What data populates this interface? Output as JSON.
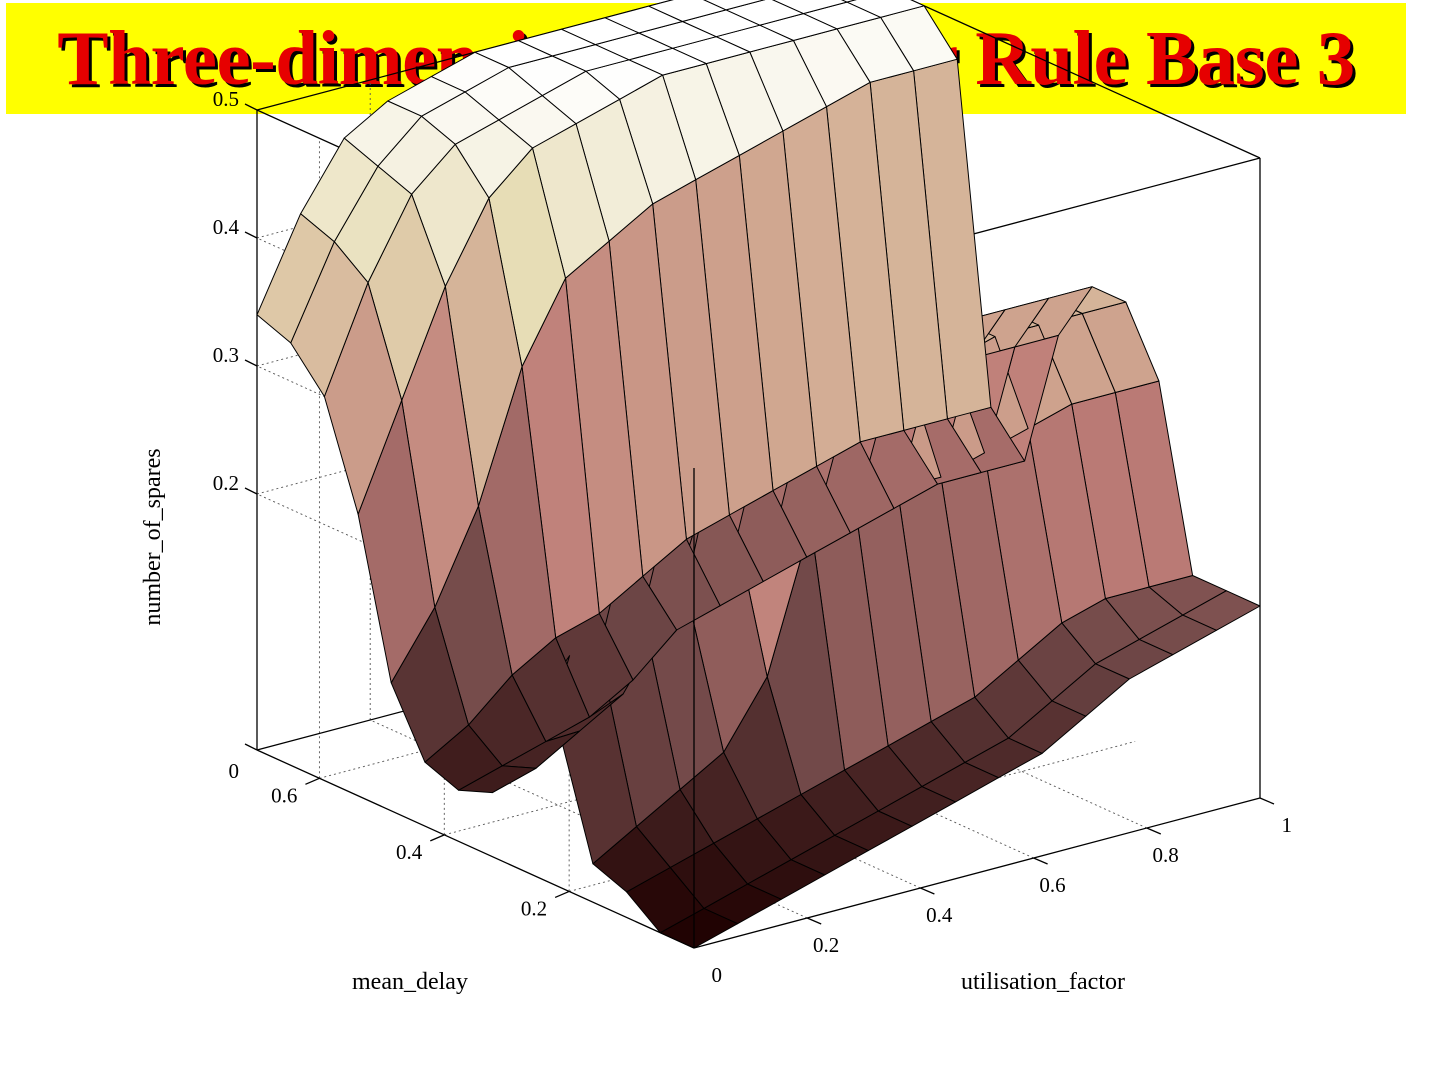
{
  "title": "Three-dimensional plots for Rule Base 3",
  "colors": {
    "banner_bg": "#ffff00",
    "title_text": "#e60000",
    "title_shadow": "#000000"
  },
  "chart_data": {
    "type": "surface",
    "title": "Three-dimensional plots for Rule Base 3",
    "xlabel": "utilisation_factor",
    "ylabel": "mean_delay",
    "zlabel": "number_of_spares",
    "x_range": [
      0,
      1
    ],
    "y_range": [
      0,
      0.7
    ],
    "z_range": [
      0,
      0.5
    ],
    "x_ticks": [
      "0",
      "0.2",
      "0.4",
      "0.6",
      "0.8",
      "1"
    ],
    "y_ticks": [
      "0",
      "0.2",
      "0.4",
      "0.6"
    ],
    "z_ticks": [
      "0",
      "0.2",
      "0.3",
      "0.4",
      "0.5"
    ],
    "grid": true,
    "colormap": "pink",
    "x": [
      0,
      0.077,
      0.154,
      0.231,
      0.308,
      0.385,
      0.462,
      0.538,
      0.615,
      0.692,
      0.769,
      0.846,
      0.923,
      1
    ],
    "y": [
      0,
      0.054,
      0.108,
      0.162,
      0.215,
      0.269,
      0.323,
      0.377,
      0.431,
      0.485,
      0.538,
      0.592,
      0.646,
      0.7
    ],
    "z": [
      [
        0.0,
        0.01,
        0.02,
        0.03,
        0.04,
        0.05,
        0.06,
        0.07,
        0.08,
        0.1,
        0.12,
        0.13,
        0.14,
        0.15
      ],
      [
        0.0,
        0.01,
        0.02,
        0.03,
        0.04,
        0.05,
        0.06,
        0.07,
        0.08,
        0.1,
        0.12,
        0.13,
        0.14,
        0.15
      ],
      [
        0.02,
        0.03,
        0.04,
        0.05,
        0.06,
        0.07,
        0.08,
        0.09,
        0.1,
        0.12,
        0.14,
        0.15,
        0.15,
        0.15
      ],
      [
        0.03,
        0.05,
        0.07,
        0.09,
        0.14,
        0.25,
        0.26,
        0.26,
        0.26,
        0.27,
        0.28,
        0.29,
        0.29,
        0.29
      ],
      [
        0.12,
        0.16,
        0.18,
        0.19,
        0.25,
        0.33,
        0.33,
        0.33,
        0.33,
        0.33,
        0.34,
        0.34,
        0.34,
        0.34
      ],
      [
        0.12,
        0.16,
        0.2,
        0.22,
        0.27,
        0.33,
        0.33,
        0.33,
        0.33,
        0.33,
        0.34,
        0.34,
        0.34,
        0.34
      ],
      [
        0.05,
        0.06,
        0.08,
        0.1,
        0.15,
        0.25,
        0.25,
        0.26,
        0.26,
        0.27,
        0.28,
        0.29,
        0.29,
        0.29
      ],
      [
        0.04,
        0.05,
        0.06,
        0.07,
        0.09,
        0.12,
        0.13,
        0.14,
        0.15,
        0.16,
        0.17,
        0.18,
        0.18,
        0.18
      ],
      [
        0.05,
        0.07,
        0.1,
        0.12,
        0.13,
        0.15,
        0.17,
        0.18,
        0.19,
        0.2,
        0.21,
        0.21,
        0.21,
        0.21
      ],
      [
        0.1,
        0.15,
        0.22,
        0.32,
        0.38,
        0.4,
        0.42,
        0.43,
        0.44,
        0.45,
        0.46,
        0.47,
        0.47,
        0.47
      ],
      [
        0.22,
        0.3,
        0.38,
        0.44,
        0.47,
        0.48,
        0.49,
        0.5,
        0.5,
        0.5,
        0.5,
        0.5,
        0.5,
        0.5
      ],
      [
        0.3,
        0.38,
        0.44,
        0.47,
        0.48,
        0.49,
        0.5,
        0.5,
        0.5,
        0.5,
        0.5,
        0.5,
        0.5,
        0.5
      ],
      [
        0.33,
        0.4,
        0.45,
        0.48,
        0.49,
        0.5,
        0.5,
        0.5,
        0.5,
        0.5,
        0.5,
        0.5,
        0.5,
        0.5
      ],
      [
        0.34,
        0.41,
        0.46,
        0.48,
        0.49,
        0.5,
        0.5,
        0.5,
        0.5,
        0.5,
        0.5,
        0.5,
        0.5,
        0.5
      ]
    ]
  }
}
